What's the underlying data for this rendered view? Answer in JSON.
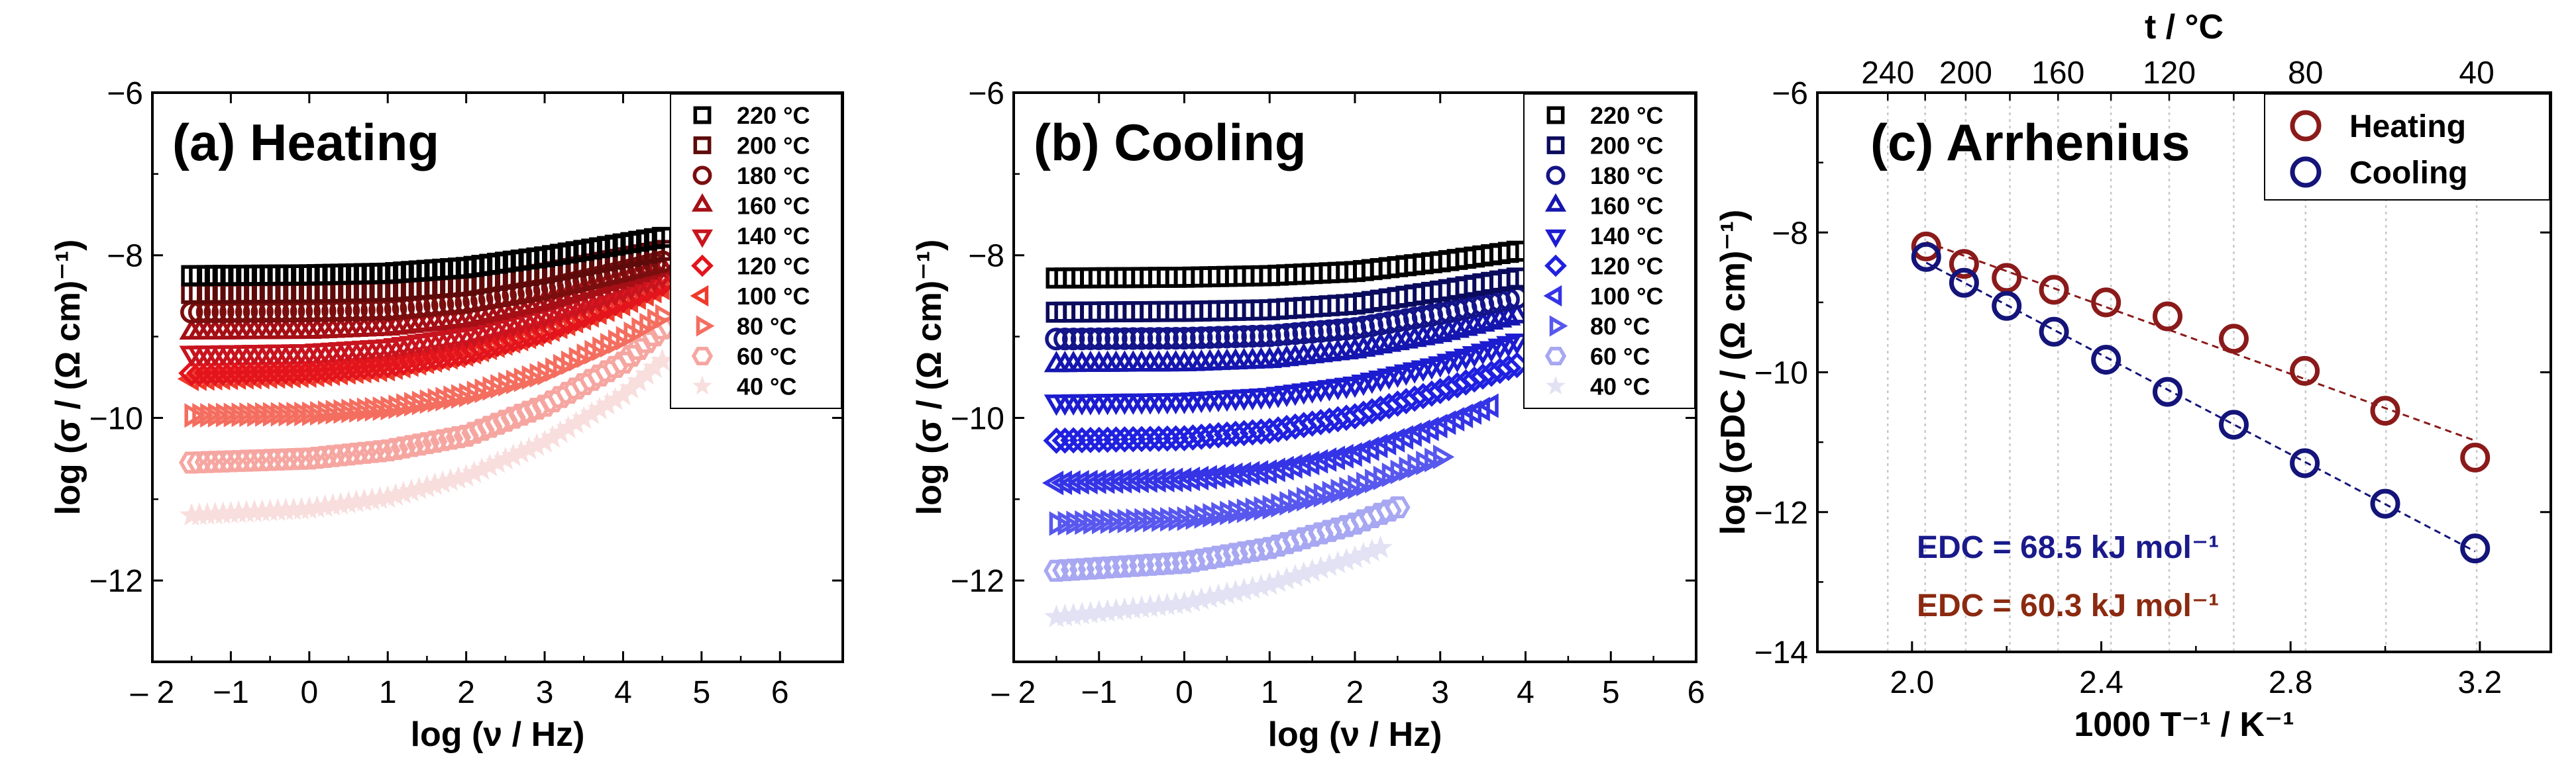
{
  "figure": {
    "panels": [
      {
        "id": "a",
        "title": "(a) Heating",
        "xlabel": "log (ν / Hz)",
        "ylabel": "log (σ / (Ω cm)⁻¹)",
        "xticks": [
          "– 2",
          "−1",
          "0",
          "1",
          "2",
          "3",
          "4",
          "5",
          "6"
        ],
        "yticks": [
          "−6",
          "−8",
          "−10",
          "−12"
        ]
      },
      {
        "id": "b",
        "title": "(b) Cooling",
        "xlabel": "log (ν / Hz)",
        "ylabel": "log (σ / (Ω cm)⁻¹)",
        "xticks": [
          "– 2",
          "−1",
          "0",
          "1",
          "2",
          "3",
          "4",
          "5",
          "6"
        ],
        "yticks": [
          "−6",
          "−8",
          "−10",
          "−12"
        ]
      },
      {
        "id": "c",
        "title": "(c) Arrhenius",
        "xlabel": "1000 T⁻¹ / K⁻¹",
        "ylabel": "log (σDC / (Ω cm)⁻¹)",
        "top_xlabel": "t / °C",
        "xticks": [
          "2.0",
          "2.4",
          "2.8",
          "3.2"
        ],
        "yticks": [
          "−6",
          "−8",
          "−10",
          "−12",
          "−14"
        ],
        "top_ticks": [
          "240",
          "200",
          "160",
          "120",
          "80",
          "40"
        ],
        "legend": [
          "Heating",
          "Cooling"
        ],
        "annotations": [
          {
            "text": "EDC = 68.5 kJ mol⁻¹",
            "color": "#1a1a8c"
          },
          {
            "text": "EDC = 60.3 kJ mol⁻¹",
            "color": "#8b2a10"
          }
        ]
      }
    ]
  },
  "chart_data": [
    {
      "type": "scatter",
      "title": "(a) Heating",
      "xlabel": "log (ν / Hz)",
      "ylabel": "log (σ / (Ω cm)⁻¹)",
      "xlim": [
        -2,
        6.8
      ],
      "ylim": [
        -13,
        -6
      ],
      "legend_position": "top-right",
      "series": [
        {
          "name": "220 °C",
          "marker": "square",
          "color": "#000000",
          "x": [
            -1.5,
            0,
            1,
            2,
            3,
            4,
            4.5
          ],
          "y": [
            -8.25,
            -8.24,
            -8.22,
            -8.15,
            -8.02,
            -7.86,
            -7.78
          ]
        },
        {
          "name": "200 °C",
          "marker": "square",
          "color": "#5e0a0a",
          "x": [
            -1.5,
            0,
            1,
            2,
            3,
            4,
            4.5
          ],
          "y": [
            -8.47,
            -8.46,
            -8.44,
            -8.37,
            -8.22,
            -8.03,
            -7.94
          ]
        },
        {
          "name": "180 °C",
          "marker": "circle",
          "color": "#7a0e0e",
          "x": [
            -1.5,
            0,
            1,
            2,
            3,
            4,
            4.5
          ],
          "y": [
            -8.7,
            -8.69,
            -8.67,
            -8.58,
            -8.42,
            -8.2,
            -8.08
          ]
        },
        {
          "name": "160 °C",
          "marker": "triangle-up",
          "color": "#a50f15",
          "x": [
            -1.5,
            0,
            1,
            2,
            3,
            4,
            4.5
          ],
          "y": [
            -8.95,
            -8.94,
            -8.9,
            -8.79,
            -8.58,
            -8.3,
            -8.15
          ]
        },
        {
          "name": "140 °C",
          "marker": "triangle-down",
          "color": "#c8141e",
          "x": [
            -1.5,
            0,
            1,
            2,
            3,
            4,
            4.5
          ],
          "y": [
            -9.2,
            -9.18,
            -9.12,
            -8.98,
            -8.74,
            -8.42,
            -8.25
          ]
        },
        {
          "name": "120 °C",
          "marker": "diamond",
          "color": "#e3141c",
          "x": [
            -1.5,
            0,
            1,
            2,
            3,
            4,
            4.5
          ],
          "y": [
            -9.45,
            -9.42,
            -9.35,
            -9.2,
            -8.93,
            -8.55,
            -8.35
          ]
        },
        {
          "name": "100 °C",
          "marker": "triangle-left",
          "color": "#ef3b2c",
          "x": [
            -1.5,
            0,
            1,
            2,
            3,
            4,
            4.5
          ],
          "y": [
            -9.52,
            -9.48,
            -9.4,
            -9.22,
            -8.95,
            -8.6,
            -8.4
          ]
        },
        {
          "name": "80 °C",
          "marker": "triangle-right",
          "color": "#f46e60",
          "x": [
            -1.5,
            0,
            1,
            2,
            3,
            4,
            4.5
          ],
          "y": [
            -9.97,
            -9.95,
            -9.88,
            -9.72,
            -9.45,
            -9.02,
            -8.75
          ]
        },
        {
          "name": "60 °C",
          "marker": "hexagon",
          "color": "#f6a6a1",
          "x": [
            -1.5,
            0,
            1,
            2,
            3,
            4,
            4.5
          ],
          "y": [
            -10.55,
            -10.5,
            -10.4,
            -10.22,
            -9.85,
            -9.32,
            -8.9
          ]
        },
        {
          "name": "40 °C",
          "marker": "star",
          "color": "#f9dede",
          "x": [
            -1.5,
            0,
            1,
            2,
            3,
            4,
            4.5
          ],
          "y": [
            -11.2,
            -11.12,
            -10.98,
            -10.72,
            -10.3,
            -9.72,
            -9.3
          ]
        }
      ]
    },
    {
      "type": "scatter",
      "title": "(b) Cooling",
      "xlabel": "log (ν / Hz)",
      "ylabel": "log (σ / (Ω cm)⁻¹)",
      "xlim": [
        -2,
        6
      ],
      "ylim": [
        -13,
        -6
      ],
      "legend_position": "top-right",
      "series": [
        {
          "name": "220 °C",
          "marker": "square",
          "color": "#000000",
          "x": [
            -1.5,
            0,
            1,
            2,
            3,
            3.9
          ],
          "y": [
            -8.28,
            -8.27,
            -8.25,
            -8.2,
            -8.08,
            -7.95
          ]
        },
        {
          "name": "200 °C",
          "marker": "square",
          "color": "#0b0b5e",
          "x": [
            -1.5,
            0,
            1,
            2,
            3,
            3.9
          ],
          "y": [
            -8.7,
            -8.69,
            -8.67,
            -8.6,
            -8.44,
            -8.28
          ]
        },
        {
          "name": "180 °C",
          "marker": "circle",
          "color": "#14148a",
          "x": [
            -1.5,
            0,
            1,
            2,
            3,
            3.9
          ],
          "y": [
            -9.03,
            -9.02,
            -8.99,
            -8.9,
            -8.72,
            -8.52
          ]
        },
        {
          "name": "160 °C",
          "marker": "triangle-up",
          "color": "#1515b0",
          "x": [
            -1.5,
            0,
            1,
            2,
            3,
            3.9
          ],
          "y": [
            -9.35,
            -9.34,
            -9.3,
            -9.18,
            -8.98,
            -8.75
          ]
        },
        {
          "name": "140 °C",
          "marker": "triangle-down",
          "color": "#1c1cd0",
          "x": [
            -1.5,
            0,
            1,
            2,
            3,
            3.9
          ],
          "y": [
            -9.8,
            -9.78,
            -9.72,
            -9.58,
            -9.33,
            -9.05
          ]
        },
        {
          "name": "120 °C",
          "marker": "diamond",
          "color": "#2020e0",
          "x": [
            -1.5,
            0,
            1,
            2,
            3,
            3.9
          ],
          "y": [
            -10.28,
            -10.25,
            -10.16,
            -9.98,
            -9.67,
            -9.35
          ]
        },
        {
          "name": "100 °C",
          "marker": "triangle-left",
          "color": "#3434e6",
          "x": [
            -1.5,
            0,
            1,
            2,
            3,
            3.6
          ],
          "y": [
            -10.8,
            -10.76,
            -10.66,
            -10.45,
            -10.1,
            -9.85
          ]
        },
        {
          "name": "80 °C",
          "marker": "triangle-right",
          "color": "#5858ee",
          "x": [
            -1.5,
            0,
            1,
            2,
            3
          ],
          "y": [
            -11.3,
            -11.24,
            -11.1,
            -10.85,
            -10.48
          ]
        },
        {
          "name": "60 °C",
          "marker": "hexagon",
          "color": "#a7a7f2",
          "x": [
            -1.5,
            0,
            1,
            2,
            2.5
          ],
          "y": [
            -11.88,
            -11.78,
            -11.6,
            -11.3,
            -11.1
          ]
        },
        {
          "name": "40 °C",
          "marker": "star",
          "color": "#e2e2f4",
          "x": [
            -1.5,
            0,
            1,
            2,
            2.3
          ],
          "y": [
            -12.45,
            -12.28,
            -12.05,
            -11.72,
            -11.6
          ]
        }
      ]
    },
    {
      "type": "scatter",
      "title": "(c) Arrhenius",
      "xlabel": "1000 T⁻¹ / K⁻¹",
      "ylabel": "log (σDC / (Ω cm)⁻¹)",
      "xlim": [
        1.8,
        3.35
      ],
      "ylim": [
        -14,
        -6
      ],
      "top_axis": {
        "label": "t / °C",
        "ticks_degC": [
          240,
          200,
          160,
          120,
          80,
          40
        ]
      },
      "grid": "vertical-dotted",
      "legend_position": "top-right",
      "series": [
        {
          "name": "Heating",
          "color": "#8b1a1a",
          "x": [
            2.03,
            2.11,
            2.2,
            2.3,
            2.41,
            2.54,
            2.68,
            2.83,
            3.0,
            3.19
          ],
          "y": [
            -8.2,
            -8.45,
            -8.65,
            -8.82,
            -9.0,
            -9.2,
            -9.52,
            -9.98,
            -10.55,
            -11.22
          ]
        },
        {
          "name": "Cooling",
          "color": "#14147a",
          "x": [
            2.03,
            2.11,
            2.2,
            2.3,
            2.41,
            2.54,
            2.68,
            2.83,
            3.0,
            3.19
          ],
          "y": [
            -8.35,
            -8.72,
            -9.05,
            -9.42,
            -9.82,
            -10.28,
            -10.75,
            -11.3,
            -11.88,
            -12.52
          ]
        }
      ],
      "annotations": [
        "EDC = 68.5 kJ mol⁻¹",
        "EDC = 60.3 kJ mol⁻¹"
      ]
    }
  ]
}
